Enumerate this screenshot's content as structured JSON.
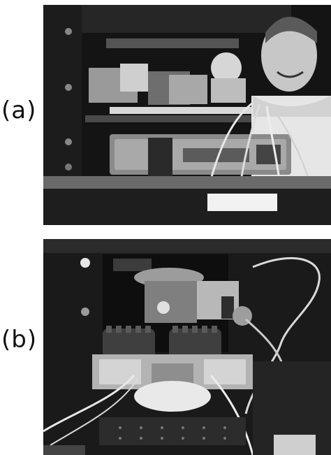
{
  "panels": [
    {
      "label": "(a)",
      "icon": "photo-optical-bench-with-person"
    },
    {
      "label": "(b)",
      "icon": "photo-mechanical-stage-assembly"
    }
  ],
  "colors": {
    "background": "#ffffff",
    "photo_dark": "#111111",
    "metal": "#bdbdbd"
  }
}
